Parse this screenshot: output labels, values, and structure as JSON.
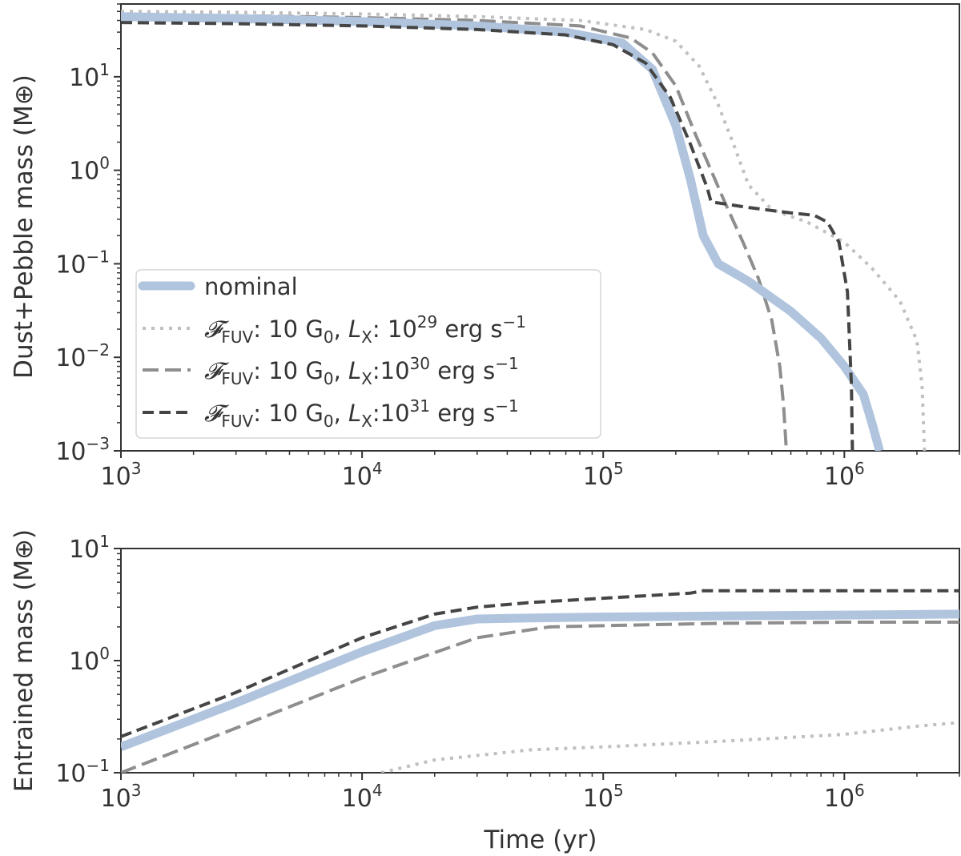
{
  "chart_data": [
    {
      "type": "line",
      "xscale": "log",
      "yscale": "log",
      "xlim": [
        1000,
        3000000
      ],
      "ylim": [
        0.001,
        60
      ],
      "ylabel": "Dust+Pebble mass (M⊕)",
      "xlabel": "",
      "x_ticks": [
        {
          "base": "10",
          "exp": "3"
        },
        {
          "base": "10",
          "exp": "4"
        },
        {
          "base": "10",
          "exp": "5"
        },
        {
          "base": "10",
          "exp": "6"
        }
      ],
      "y_ticks": [
        {
          "base": "10",
          "exp": "−3",
          "value": 0.001
        },
        {
          "base": "10",
          "exp": "−2",
          "value": 0.01
        },
        {
          "base": "10",
          "exp": "−1",
          "value": 0.1
        },
        {
          "base": "10",
          "exp": "0",
          "value": 1
        },
        {
          "base": "10",
          "exp": "1",
          "value": 10
        }
      ],
      "legend": {
        "position": "lower-left",
        "entries": [
          {
            "series": "nominal",
            "plain": "nominal"
          },
          {
            "series": "lx29",
            "pre": "𝓕",
            "sub1": "FUV",
            "mid": ": 10 G",
            "sub2": "0",
            "comma": ", ",
            "L": "L",
            "sub3": "X",
            "colon": ": 10",
            "exp": "29",
            "post": " erg s",
            "exp2": "−1"
          },
          {
            "series": "lx30",
            "pre": "𝓕",
            "sub1": "FUV",
            "mid": ": 10 G",
            "sub2": "0",
            "comma": ", ",
            "L": "L",
            "sub3": "X",
            "colon": ":10",
            "exp": "30",
            "post": " erg s",
            "exp2": "−1"
          },
          {
            "series": "lx31",
            "pre": "𝓕",
            "sub1": "FUV",
            "mid": ": 10 G",
            "sub2": "0",
            "comma": ", ",
            "L": "L",
            "sub3": "X",
            "colon": ":10",
            "exp": "31",
            "post": " erg s",
            "exp2": "−1"
          }
        ]
      },
      "series": [
        {
          "name": "nominal",
          "color": "#b0c4de",
          "x": [
            1000,
            3000,
            10000,
            30000,
            70000,
            120000,
            160000,
            200000,
            230000,
            260000,
            300000,
            400000,
            600000,
            800000,
            1000000,
            1200000,
            1300000,
            1400000
          ],
          "y": [
            44,
            42,
            39,
            35,
            30,
            23,
            12,
            3,
            0.8,
            0.2,
            0.1,
            0.065,
            0.031,
            0.016,
            0.008,
            0.004,
            0.002,
            0.001
          ]
        },
        {
          "name": "lx29",
          "color": "#c0c0c0",
          "x": [
            1000,
            3000,
            10000,
            30000,
            80000,
            150000,
            200000,
            250000,
            300000,
            350000,
            400000,
            500000,
            700000,
            1000000,
            1300000,
            1700000,
            2000000,
            2100000,
            2150000
          ],
          "y": [
            50,
            49,
            47,
            44,
            40,
            32,
            24,
            13,
            5,
            1.8,
            0.7,
            0.38,
            0.28,
            0.17,
            0.09,
            0.04,
            0.015,
            0.005,
            0.001
          ]
        },
        {
          "name": "lx30",
          "color": "#8e8e8e",
          "x": [
            1000,
            3000,
            10000,
            30000,
            80000,
            130000,
            160000,
            200000,
            240000,
            280000,
            320000,
            380000,
            440000,
            500000,
            540000,
            560000,
            575000
          ],
          "y": [
            46,
            45,
            43,
            40,
            35,
            26,
            18,
            8,
            2.5,
            1.0,
            0.45,
            0.17,
            0.07,
            0.025,
            0.008,
            0.003,
            0.001
          ]
        },
        {
          "name": "lx31",
          "color": "#454545",
          "x": [
            1000,
            3000,
            10000,
            30000,
            70000,
            110000,
            150000,
            190000,
            230000,
            270000,
            280000,
            400000,
            600000,
            750000,
            850000,
            950000,
            1030000,
            1070000,
            1080000
          ],
          "y": [
            38,
            37,
            35,
            32,
            28,
            22,
            14,
            6,
            1.9,
            0.65,
            0.46,
            0.4,
            0.35,
            0.33,
            0.28,
            0.17,
            0.05,
            0.005,
            0.001
          ]
        }
      ]
    },
    {
      "type": "line",
      "xscale": "log",
      "yscale": "log",
      "xlim": [
        1000,
        3000000
      ],
      "ylim": [
        0.1,
        10
      ],
      "ylabel": "Entrained mass (M⊕)",
      "xlabel": "Time (yr)",
      "x_ticks": [
        {
          "base": "10",
          "exp": "3"
        },
        {
          "base": "10",
          "exp": "4"
        },
        {
          "base": "10",
          "exp": "5"
        },
        {
          "base": "10",
          "exp": "6"
        }
      ],
      "y_ticks": [
        {
          "base": "10",
          "exp": "−1",
          "value": 0.1
        },
        {
          "base": "10",
          "exp": "0",
          "value": 1
        },
        {
          "base": "10",
          "exp": "1",
          "value": 10
        }
      ],
      "series": [
        {
          "name": "nominal",
          "color": "#b0c4de",
          "x": [
            1000,
            3000,
            10000,
            20000,
            30000,
            50000,
            100000,
            300000,
            1000000,
            3000000
          ],
          "y": [
            0.17,
            0.42,
            1.2,
            2.05,
            2.35,
            2.4,
            2.45,
            2.5,
            2.55,
            2.6
          ]
        },
        {
          "name": "lx29",
          "color": "#c0c0c0",
          "x": [
            12000,
            20000,
            50000,
            100000,
            300000,
            1000000,
            2000000,
            3000000
          ],
          "y": [
            0.1,
            0.13,
            0.16,
            0.17,
            0.19,
            0.22,
            0.26,
            0.28
          ]
        },
        {
          "name": "lx30",
          "color": "#8e8e8e",
          "x": [
            1000,
            3000,
            10000,
            30000,
            60000,
            100000,
            300000,
            1000000,
            3000000
          ],
          "y": [
            0.1,
            0.25,
            0.7,
            1.6,
            2.0,
            2.05,
            2.15,
            2.2,
            2.2
          ]
        },
        {
          "name": "lx31",
          "color": "#454545",
          "x": [
            1000,
            3000,
            10000,
            20000,
            30000,
            50000,
            100000,
            230000,
            260000,
            1000000,
            3000000
          ],
          "y": [
            0.21,
            0.52,
            1.6,
            2.6,
            3.0,
            3.3,
            3.6,
            4.0,
            4.2,
            4.2,
            4.2
          ]
        }
      ]
    }
  ]
}
